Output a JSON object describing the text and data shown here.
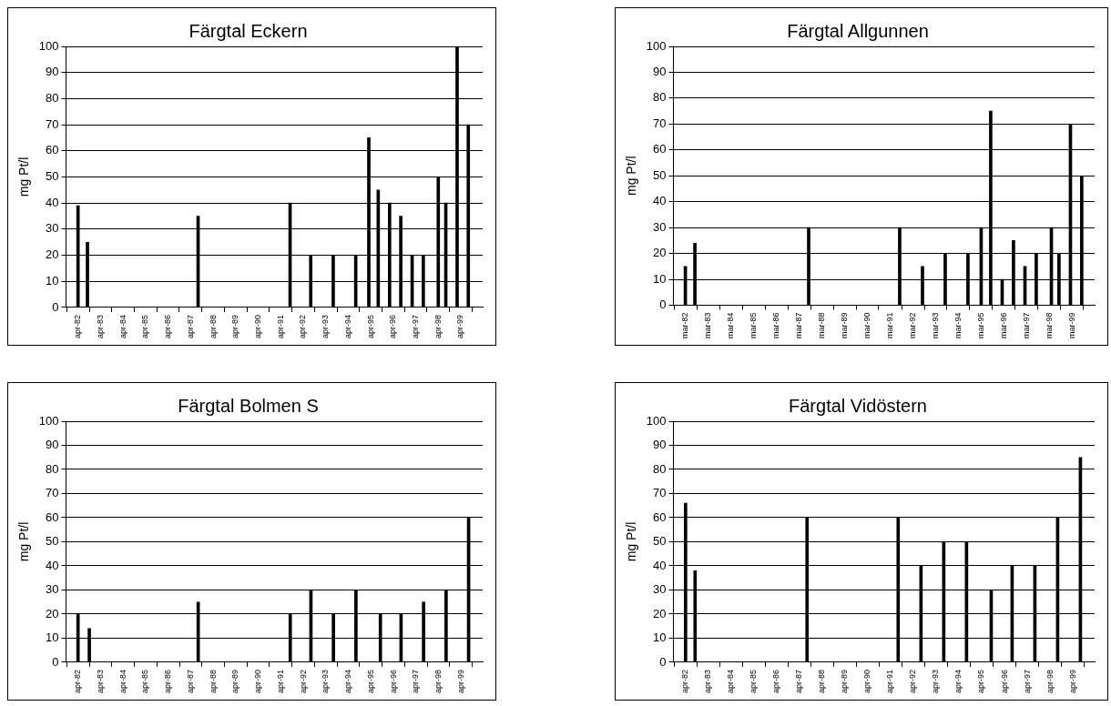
{
  "chart_data": [
    {
      "type": "bar",
      "title": "Färgtal Eckern",
      "ylabel": "mg Pt/l",
      "color": "#000000",
      "x": [
        "1982-04",
        "1982-09",
        "1987-08",
        "1991-09",
        "1992-08",
        "1993-08",
        "1994-08",
        "1995-03",
        "1995-08",
        "1996-02",
        "1996-08",
        "1997-02",
        "1997-08",
        "1998-04",
        "1998-08",
        "1999-02",
        "1999-08"
      ],
      "values": [
        39,
        25,
        35,
        40,
        20,
        20,
        20,
        65,
        45,
        40,
        35,
        20,
        20,
        50,
        40,
        100,
        70
      ],
      "xlim": [
        "1982-03-25",
        "1999-09-15"
      ],
      "xticks": [
        {
          "value": "1982-04",
          "label": "apr-82"
        },
        {
          "value": "1983-04",
          "label": "apr-83"
        },
        {
          "value": "1984-04",
          "label": "apr-84"
        },
        {
          "value": "1985-04",
          "label": "apr-85"
        },
        {
          "value": "1986-04",
          "label": "apr-86"
        },
        {
          "value": "1987-04",
          "label": "apr-87"
        },
        {
          "value": "1988-04",
          "label": "apr-88"
        },
        {
          "value": "1989-04",
          "label": "apr-89"
        },
        {
          "value": "1990-04",
          "label": "apr-90"
        },
        {
          "value": "1991-04",
          "label": "apr-91"
        },
        {
          "value": "1992-04",
          "label": "apr-92"
        },
        {
          "value": "1993-04",
          "label": "apr-93"
        },
        {
          "value": "1994-04",
          "label": "apr-94"
        },
        {
          "value": "1995-04",
          "label": "apr-95"
        },
        {
          "value": "1996-04",
          "label": "apr-96"
        },
        {
          "value": "1997-04",
          "label": "apr-97"
        },
        {
          "value": "1998-04",
          "label": "apr-98"
        },
        {
          "value": "1999-04",
          "label": "apr-99"
        }
      ],
      "ylim": [
        0,
        100
      ],
      "yticks": [
        0,
        10,
        20,
        30,
        40,
        50,
        60,
        70,
        80,
        90,
        100
      ],
      "grid": "y",
      "legend": false
    },
    {
      "type": "bar",
      "title": "Färgtal Allgunnen",
      "ylabel": "mg Pt/l",
      "color": "#000000",
      "x": [
        "1982-03",
        "1982-08",
        "1987-08",
        "1991-08",
        "1992-08",
        "1993-08",
        "1994-08",
        "1995-03",
        "1995-08",
        "1996-02",
        "1996-08",
        "1997-02",
        "1997-08",
        "1998-04",
        "1998-08",
        "1999-02",
        "1999-08"
      ],
      "values": [
        15,
        24,
        30,
        30,
        15,
        20,
        20,
        30,
        75,
        10,
        25,
        15,
        20,
        30,
        20,
        70,
        50
      ],
      "xlim": [
        "1982-02-25",
        "1999-08-20"
      ],
      "xticks": [
        {
          "value": "1982-03",
          "label": "mar-82"
        },
        {
          "value": "1983-03",
          "label": "mar-83"
        },
        {
          "value": "1984-03",
          "label": "mar-84"
        },
        {
          "value": "1985-03",
          "label": "mar-85"
        },
        {
          "value": "1986-03",
          "label": "mar-86"
        },
        {
          "value": "1987-03",
          "label": "mar-87"
        },
        {
          "value": "1988-03",
          "label": "mar-88"
        },
        {
          "value": "1989-03",
          "label": "mar-89"
        },
        {
          "value": "1990-03",
          "label": "mar-90"
        },
        {
          "value": "1991-03",
          "label": "mar-91"
        },
        {
          "value": "1992-03",
          "label": "mar-92"
        },
        {
          "value": "1993-03",
          "label": "mar-93"
        },
        {
          "value": "1994-03",
          "label": "mar-94"
        },
        {
          "value": "1995-03",
          "label": "mar-95"
        },
        {
          "value": "1996-03",
          "label": "mar-96"
        },
        {
          "value": "1997-03",
          "label": "mar-97"
        },
        {
          "value": "1998-03",
          "label": "mar-98"
        },
        {
          "value": "1999-03",
          "label": "mar-99"
        }
      ],
      "ylim": [
        0,
        100
      ],
      "yticks": [
        0,
        10,
        20,
        30,
        40,
        50,
        60,
        70,
        80,
        90,
        100
      ],
      "grid": "y",
      "legend": false
    },
    {
      "type": "bar",
      "title": "Färgtal Bolmen S",
      "ylabel": "mg Pt/l",
      "color": "#000000",
      "x": [
        "1982-04",
        "1982-10",
        "1987-08",
        "1991-09",
        "1992-08",
        "1993-08",
        "1994-08",
        "1995-09",
        "1996-08",
        "1997-08",
        "1998-08",
        "1999-08"
      ],
      "values": [
        20,
        14,
        25,
        20,
        30,
        20,
        30,
        20,
        20,
        25,
        30,
        60
      ],
      "xlim": [
        "1982-03-25",
        "1999-09-10"
      ],
      "xticks": [
        {
          "value": "1982-04",
          "label": "apr-82"
        },
        {
          "value": "1983-04",
          "label": "apr-83"
        },
        {
          "value": "1984-04",
          "label": "apr-84"
        },
        {
          "value": "1985-04",
          "label": "apr-85"
        },
        {
          "value": "1986-04",
          "label": "apr-86"
        },
        {
          "value": "1987-04",
          "label": "apr-87"
        },
        {
          "value": "1988-04",
          "label": "apr-88"
        },
        {
          "value": "1989-04",
          "label": "apr-89"
        },
        {
          "value": "1990-04",
          "label": "apr-90"
        },
        {
          "value": "1991-04",
          "label": "apr-91"
        },
        {
          "value": "1992-04",
          "label": "apr-92"
        },
        {
          "value": "1993-04",
          "label": "apr-93"
        },
        {
          "value": "1994-04",
          "label": "apr-94"
        },
        {
          "value": "1995-04",
          "label": "apr-95"
        },
        {
          "value": "1996-04",
          "label": "apr-96"
        },
        {
          "value": "1997-04",
          "label": "apr-97"
        },
        {
          "value": "1998-04",
          "label": "apr-98"
        },
        {
          "value": "1999-04",
          "label": "apr-99"
        }
      ],
      "ylim": [
        0,
        100
      ],
      "yticks": [
        0,
        10,
        20,
        30,
        40,
        50,
        60,
        70,
        80,
        90,
        100
      ],
      "grid": "y",
      "legend": false
    },
    {
      "type": "bar",
      "title": "Färgtal Vidöstern",
      "ylabel": "mg Pt/l",
      "color": "#000000",
      "x": [
        "1982-04",
        "1982-09",
        "1987-08",
        "1991-08",
        "1992-08",
        "1993-08",
        "1994-08",
        "1995-09",
        "1996-08",
        "1997-08",
        "1998-08",
        "1999-08"
      ],
      "values": [
        66,
        38,
        60,
        60,
        40,
        50,
        50,
        30,
        40,
        40,
        60,
        85
      ],
      "xlim": [
        "1982-03-25",
        "1999-09-10"
      ],
      "xticks": [
        {
          "value": "1982-04",
          "label": "apr-82"
        },
        {
          "value": "1983-04",
          "label": "apr-83"
        },
        {
          "value": "1984-04",
          "label": "apr-84"
        },
        {
          "value": "1985-04",
          "label": "apr-85"
        },
        {
          "value": "1986-04",
          "label": "apr-86"
        },
        {
          "value": "1987-04",
          "label": "apr-87"
        },
        {
          "value": "1988-04",
          "label": "apr-88"
        },
        {
          "value": "1989-04",
          "label": "apr-89"
        },
        {
          "value": "1990-04",
          "label": "apr-90"
        },
        {
          "value": "1991-04",
          "label": "apr-91"
        },
        {
          "value": "1992-04",
          "label": "apr-92"
        },
        {
          "value": "1993-04",
          "label": "apr-93"
        },
        {
          "value": "1994-04",
          "label": "apr-94"
        },
        {
          "value": "1995-04",
          "label": "apr-95"
        },
        {
          "value": "1996-04",
          "label": "apr-96"
        },
        {
          "value": "1997-04",
          "label": "apr-97"
        },
        {
          "value": "1998-04",
          "label": "apr-98"
        },
        {
          "value": "1999-04",
          "label": "apr-99"
        }
      ],
      "ylim": [
        0,
        100
      ],
      "yticks": [
        0,
        10,
        20,
        30,
        40,
        50,
        60,
        70,
        80,
        90,
        100
      ],
      "grid": "y",
      "legend": false
    }
  ]
}
